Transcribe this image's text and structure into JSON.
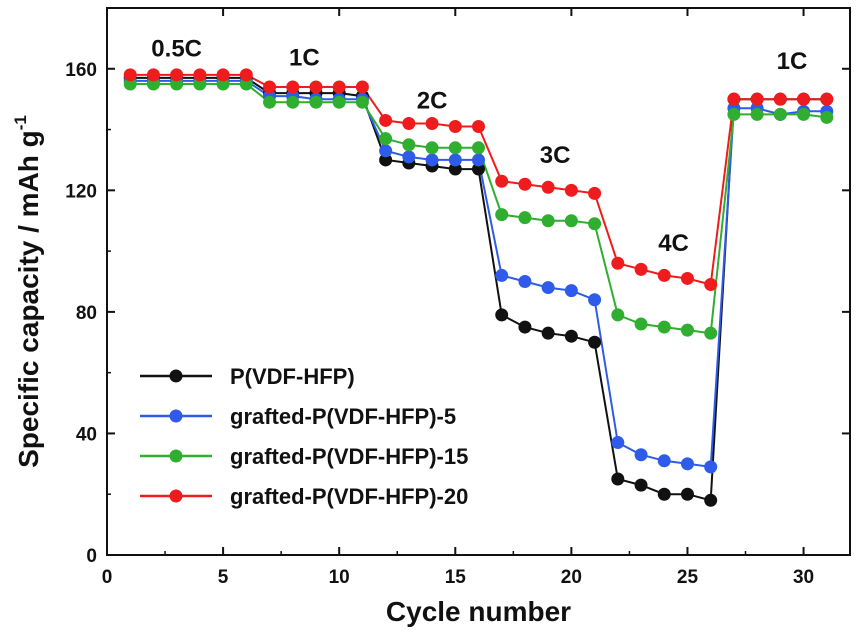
{
  "chart_data": {
    "type": "line",
    "xlabel": "Cycle number",
    "ylabel_main": "Specific capacity / mAh g",
    "ylabel_sup": "-1",
    "xlim": [
      0,
      32
    ],
    "ylim": [
      0,
      180
    ],
    "xticks": [
      0,
      5,
      10,
      15,
      20,
      25,
      30
    ],
    "yticks": [
      0,
      40,
      80,
      120,
      160
    ],
    "grid": false,
    "legend_position": "bottom-left",
    "x": [
      1,
      2,
      3,
      4,
      5,
      6,
      7,
      8,
      9,
      10,
      11,
      12,
      13,
      14,
      15,
      16,
      17,
      18,
      19,
      20,
      21,
      22,
      23,
      24,
      25,
      26,
      27,
      28,
      29,
      30,
      31
    ],
    "series": [
      {
        "name": "P(VDF-HFP)",
        "color": "#111111",
        "values": [
          157,
          157,
          157,
          157,
          157,
          157,
          152,
          152,
          152,
          152,
          151,
          130,
          129,
          128,
          127,
          127,
          79,
          75,
          73,
          72,
          70,
          25,
          23,
          20,
          20,
          18,
          150,
          150,
          150,
          150,
          150
        ]
      },
      {
        "name": "grafted-P(VDF-HFP)-5",
        "color": "#2f5bea",
        "values": [
          156,
          156,
          156,
          156,
          156,
          156,
          151,
          151,
          150,
          150,
          150,
          133,
          131,
          130,
          130,
          130,
          92,
          90,
          88,
          87,
          84,
          37,
          33,
          31,
          30,
          29,
          147,
          147,
          145,
          146,
          146
        ]
      },
      {
        "name": "grafted-P(VDF-HFP)-15",
        "color": "#2fae2f",
        "values": [
          155,
          155,
          155,
          155,
          155,
          155,
          149,
          149,
          149,
          149,
          149,
          137,
          135,
          134,
          134,
          134,
          112,
          111,
          110,
          110,
          109,
          79,
          76,
          75,
          74,
          73,
          145,
          145,
          145,
          145,
          144
        ]
      },
      {
        "name": "grafted-P(VDF-HFP)-20",
        "color": "#ee1c1c",
        "values": [
          158,
          158,
          158,
          158,
          158,
          158,
          154,
          154,
          154,
          154,
          154,
          143,
          142,
          142,
          141,
          141,
          123,
          122,
          121,
          120,
          119,
          96,
          94,
          92,
          91,
          89,
          150,
          150,
          150,
          150,
          150
        ]
      }
    ],
    "annotations": [
      {
        "text": "0.5C",
        "x": 3,
        "y": 164
      },
      {
        "text": "1C",
        "x": 8.5,
        "y": 161
      },
      {
        "text": "2C",
        "x": 14,
        "y": 147
      },
      {
        "text": "3C",
        "x": 19.3,
        "y": 129
      },
      {
        "text": "4C",
        "x": 24.4,
        "y": 100
      },
      {
        "text": "1C",
        "x": 29.5,
        "y": 160
      }
    ]
  }
}
